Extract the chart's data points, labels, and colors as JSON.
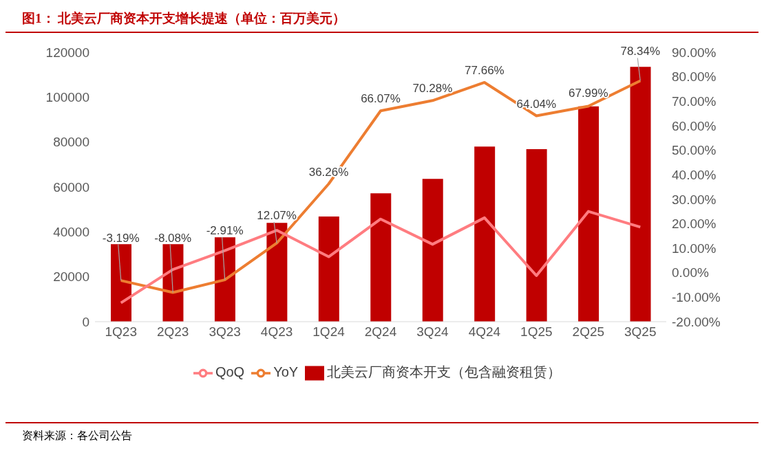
{
  "chart_data": {
    "type": "bar",
    "title": "图1：  北美云厂商资本开支增长提速（单位：百万美元）",
    "categories": [
      "1Q23",
      "2Q23",
      "3Q23",
      "4Q23",
      "1Q24",
      "2Q24",
      "3Q24",
      "4Q24",
      "1Q25",
      "2Q25",
      "3Q25"
    ],
    "series": [
      {
        "name": "北美云厂商资本开支（包含融资租赁）",
        "color": "#c00000",
        "values": [
          34500,
          34500,
          37600,
          44000,
          46800,
          57200,
          63600,
          78000,
          76800,
          95900,
          113500
        ]
      },
      {
        "name": "YoY",
        "type": "line",
        "axis": "y2",
        "color": "#ed7d31",
        "values": [
          -3.19,
          -8.08,
          -2.91,
          12.07,
          36.26,
          66.07,
          70.28,
          77.66,
          64.04,
          67.99,
          78.34
        ],
        "value_labels": [
          "-3.19%",
          "-8.08%",
          "-2.91%",
          "12.07%",
          "36.26%",
          "66.07%",
          "70.28%",
          "77.66%",
          "64.04%",
          "67.99%",
          "78.34%"
        ]
      },
      {
        "name": "QoQ",
        "type": "line",
        "axis": "y2",
        "color": "#ff7c80",
        "values": [
          -12.3,
          1.3,
          9.0,
          17.3,
          6.5,
          21.9,
          11.6,
          22.4,
          -1.2,
          25.0,
          18.6
        ]
      }
    ],
    "ylim": [
      0,
      120000
    ],
    "yticks": [
      0,
      20000,
      40000,
      60000,
      80000,
      100000,
      120000
    ],
    "y2lim": [
      -20,
      90
    ],
    "y2ticks": [
      {
        "value": -20,
        "label": "-20.00%"
      },
      {
        "value": -10,
        "label": "-10.00%"
      },
      {
        "value": 0,
        "label": "0.00%"
      },
      {
        "value": 10,
        "label": "10.00%"
      },
      {
        "value": 20,
        "label": "20.00%"
      },
      {
        "value": 30,
        "label": "30.00%"
      },
      {
        "value": 40,
        "label": "40.00%"
      },
      {
        "value": 50,
        "label": "50.00%"
      },
      {
        "value": 60,
        "label": "60.00%"
      },
      {
        "value": 70,
        "label": "70.00%"
      },
      {
        "value": 80,
        "label": "80.00%"
      },
      {
        "value": 90,
        "label": "90.00%"
      }
    ],
    "grid": false,
    "legend": "bottom",
    "marker": "none",
    "annotations": [
      "资料来源：各公司公告"
    ]
  }
}
